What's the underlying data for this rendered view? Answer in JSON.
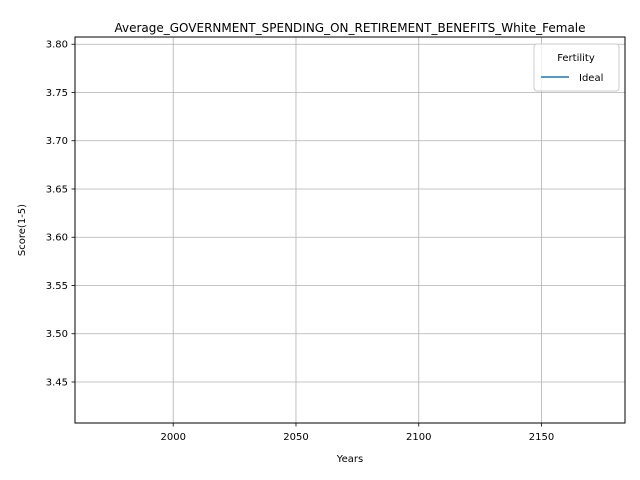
{
  "chart_data": {
    "type": "line",
    "title": "Average_GOVERNMENT_SPENDING_ON_RETIREMENT_BENEFITS_White_Female",
    "xlabel": "Years",
    "ylabel": "Score(1-5)",
    "xlim": [
      1960,
      2184
    ],
    "ylim": [
      3.4075,
      3.8075
    ],
    "x_ticks": [
      2000,
      2050,
      2100,
      2150
    ],
    "x_tick_labels": [
      "2000",
      "2050",
      "2100",
      "2150"
    ],
    "y_ticks": [
      3.45,
      3.5,
      3.55,
      3.6,
      3.65,
      3.7,
      3.75,
      3.8
    ],
    "y_tick_labels": [
      "3.45",
      "3.50",
      "3.55",
      "3.60",
      "3.65",
      "3.70",
      "3.75",
      "3.80"
    ],
    "grid": true,
    "legend": {
      "title": "Fertility",
      "placement": "top-right"
    },
    "series": [
      {
        "name": "Ideal",
        "color": "#1f77b4",
        "x": [],
        "y": []
      }
    ]
  }
}
